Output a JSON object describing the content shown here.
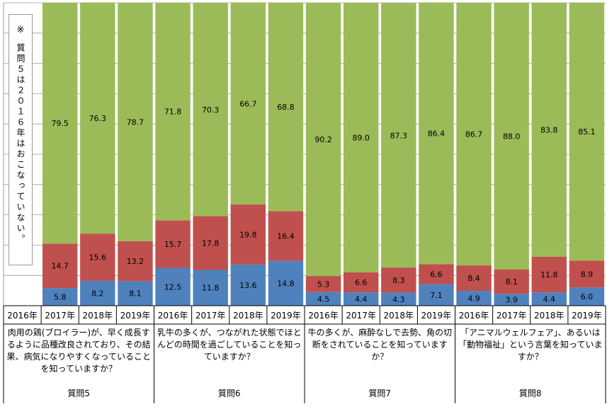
{
  "note": {
    "mark": "※",
    "text": "質問５は２０１６年はおこなっていない。"
  },
  "colors": {
    "low": "#4f81bd",
    "mid": "#c0504d",
    "high": "#9bbb59",
    "grid": "#9a9a9a"
  },
  "chart_data": {
    "type": "bar",
    "stacked": true,
    "ylim": [
      0,
      100
    ],
    "groups": [
      {
        "label": "質問5",
        "description": "肉用の鶏(ブロイラー)が、早く成長するように品種改良されており、その結果、病気になりやすくなっていることを知っていますか？",
        "years": [
          "2016年",
          "2017年",
          "2018年",
          "2019年"
        ],
        "bars": [
          null,
          {
            "low": 5.8,
            "mid": 14.7,
            "high": 79.5
          },
          {
            "low": 8.2,
            "mid": 15.6,
            "high": 76.3
          },
          {
            "low": 8.1,
            "mid": 13.2,
            "high": 78.7
          }
        ]
      },
      {
        "label": "質問6",
        "description": "乳牛の多くが、つながれた状態でほとんどの時間を過ごしていることを知っていますか？",
        "years": [
          "2016年",
          "2017年",
          "2018年",
          "2019年"
        ],
        "bars": [
          {
            "low": 12.5,
            "mid": 15.7,
            "high": 71.8
          },
          {
            "low": 11.8,
            "mid": 17.8,
            "high": 70.3
          },
          {
            "low": 13.6,
            "mid": 19.8,
            "high": 66.7
          },
          {
            "low": 14.8,
            "mid": 16.4,
            "high": 68.8
          }
        ]
      },
      {
        "label": "質問7",
        "description": "牛の多くが、麻酔なしで去勢、角の切断をされていることを知っていますか？",
        "years": [
          "2016年",
          "2017年",
          "2018年",
          "2019年"
        ],
        "bars": [
          {
            "low": 4.5,
            "mid": 5.3,
            "high": 90.2
          },
          {
            "low": 4.4,
            "mid": 6.6,
            "high": 89.0
          },
          {
            "low": 4.3,
            "mid": 8.3,
            "high": 87.3
          },
          {
            "low": 7.1,
            "mid": 6.6,
            "high": 86.4
          }
        ]
      },
      {
        "label": "質問8",
        "description": "「アニマルウェルフェア」、あるいは「動物福祉」という言葉を知っていますか？",
        "years": [
          "2016年",
          "2017年",
          "2018年",
          "2019年"
        ],
        "bars": [
          {
            "low": 4.9,
            "mid": 8.4,
            "high": 86.7
          },
          {
            "low": 3.9,
            "mid": 8.1,
            "high": 88.0
          },
          {
            "low": 4.4,
            "mid": 11.8,
            "high": 83.8
          },
          {
            "low": 6.0,
            "mid": 8.9,
            "high": 85.1
          }
        ]
      }
    ]
  }
}
